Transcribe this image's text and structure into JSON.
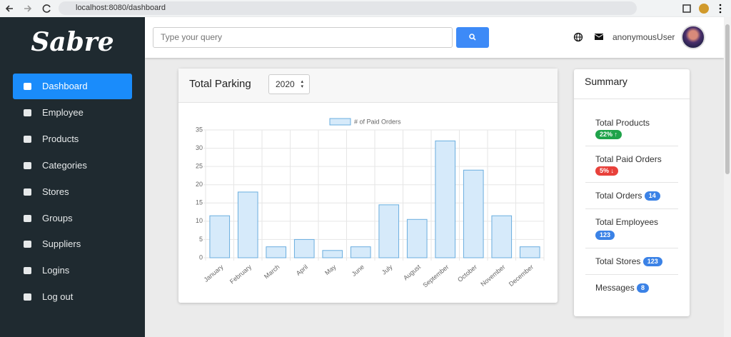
{
  "browser": {
    "url": "localhost:8080/dashboard"
  },
  "sidebar": {
    "brand": "Sabre",
    "items": [
      "Dashboard",
      "Employee",
      "Products",
      "Categories",
      "Stores",
      "Groups",
      "Suppliers",
      "Logins",
      "Log out"
    ]
  },
  "search": {
    "placeholder": "Type your query"
  },
  "user": {
    "name": "anonymousUser"
  },
  "chart_card": {
    "title": "Total Parking",
    "year": "2020"
  },
  "chart_data": {
    "type": "bar",
    "categories": [
      "January",
      "February",
      "March",
      "April",
      "May",
      "June",
      "July",
      "August",
      "September",
      "October",
      "November",
      "December"
    ],
    "series": [
      {
        "name": "# of Paid Orders",
        "color": "#d6eafa",
        "border_color": "#6aaedf",
        "values": [
          11.5,
          18,
          3,
          5,
          2,
          3,
          14.5,
          10.5,
          32,
          24,
          11.5,
          3
        ]
      }
    ],
    "ylim": [
      0,
      35
    ],
    "yticks": [
      0,
      5,
      10,
      15,
      20,
      25,
      30,
      35
    ],
    "grid": true,
    "legend": "top"
  },
  "summary": {
    "title": "Summary",
    "items": [
      {
        "label": "Total Products",
        "badge": "22%",
        "color": "#1fa34a",
        "trend": "up"
      },
      {
        "label": "Total Paid Orders",
        "badge": "5%",
        "color": "#e8413b",
        "trend": "down"
      },
      {
        "label": "Total Orders",
        "badge": 14,
        "color": "#3b82e6"
      },
      {
        "label": "Total Employees",
        "badge": 123,
        "color": "#3b82e6"
      },
      {
        "label": "Total Stores",
        "badge": 123,
        "color": "#3b82e6"
      },
      {
        "label": "Messages",
        "badge": 8,
        "color": "#3b82e6"
      }
    ]
  }
}
